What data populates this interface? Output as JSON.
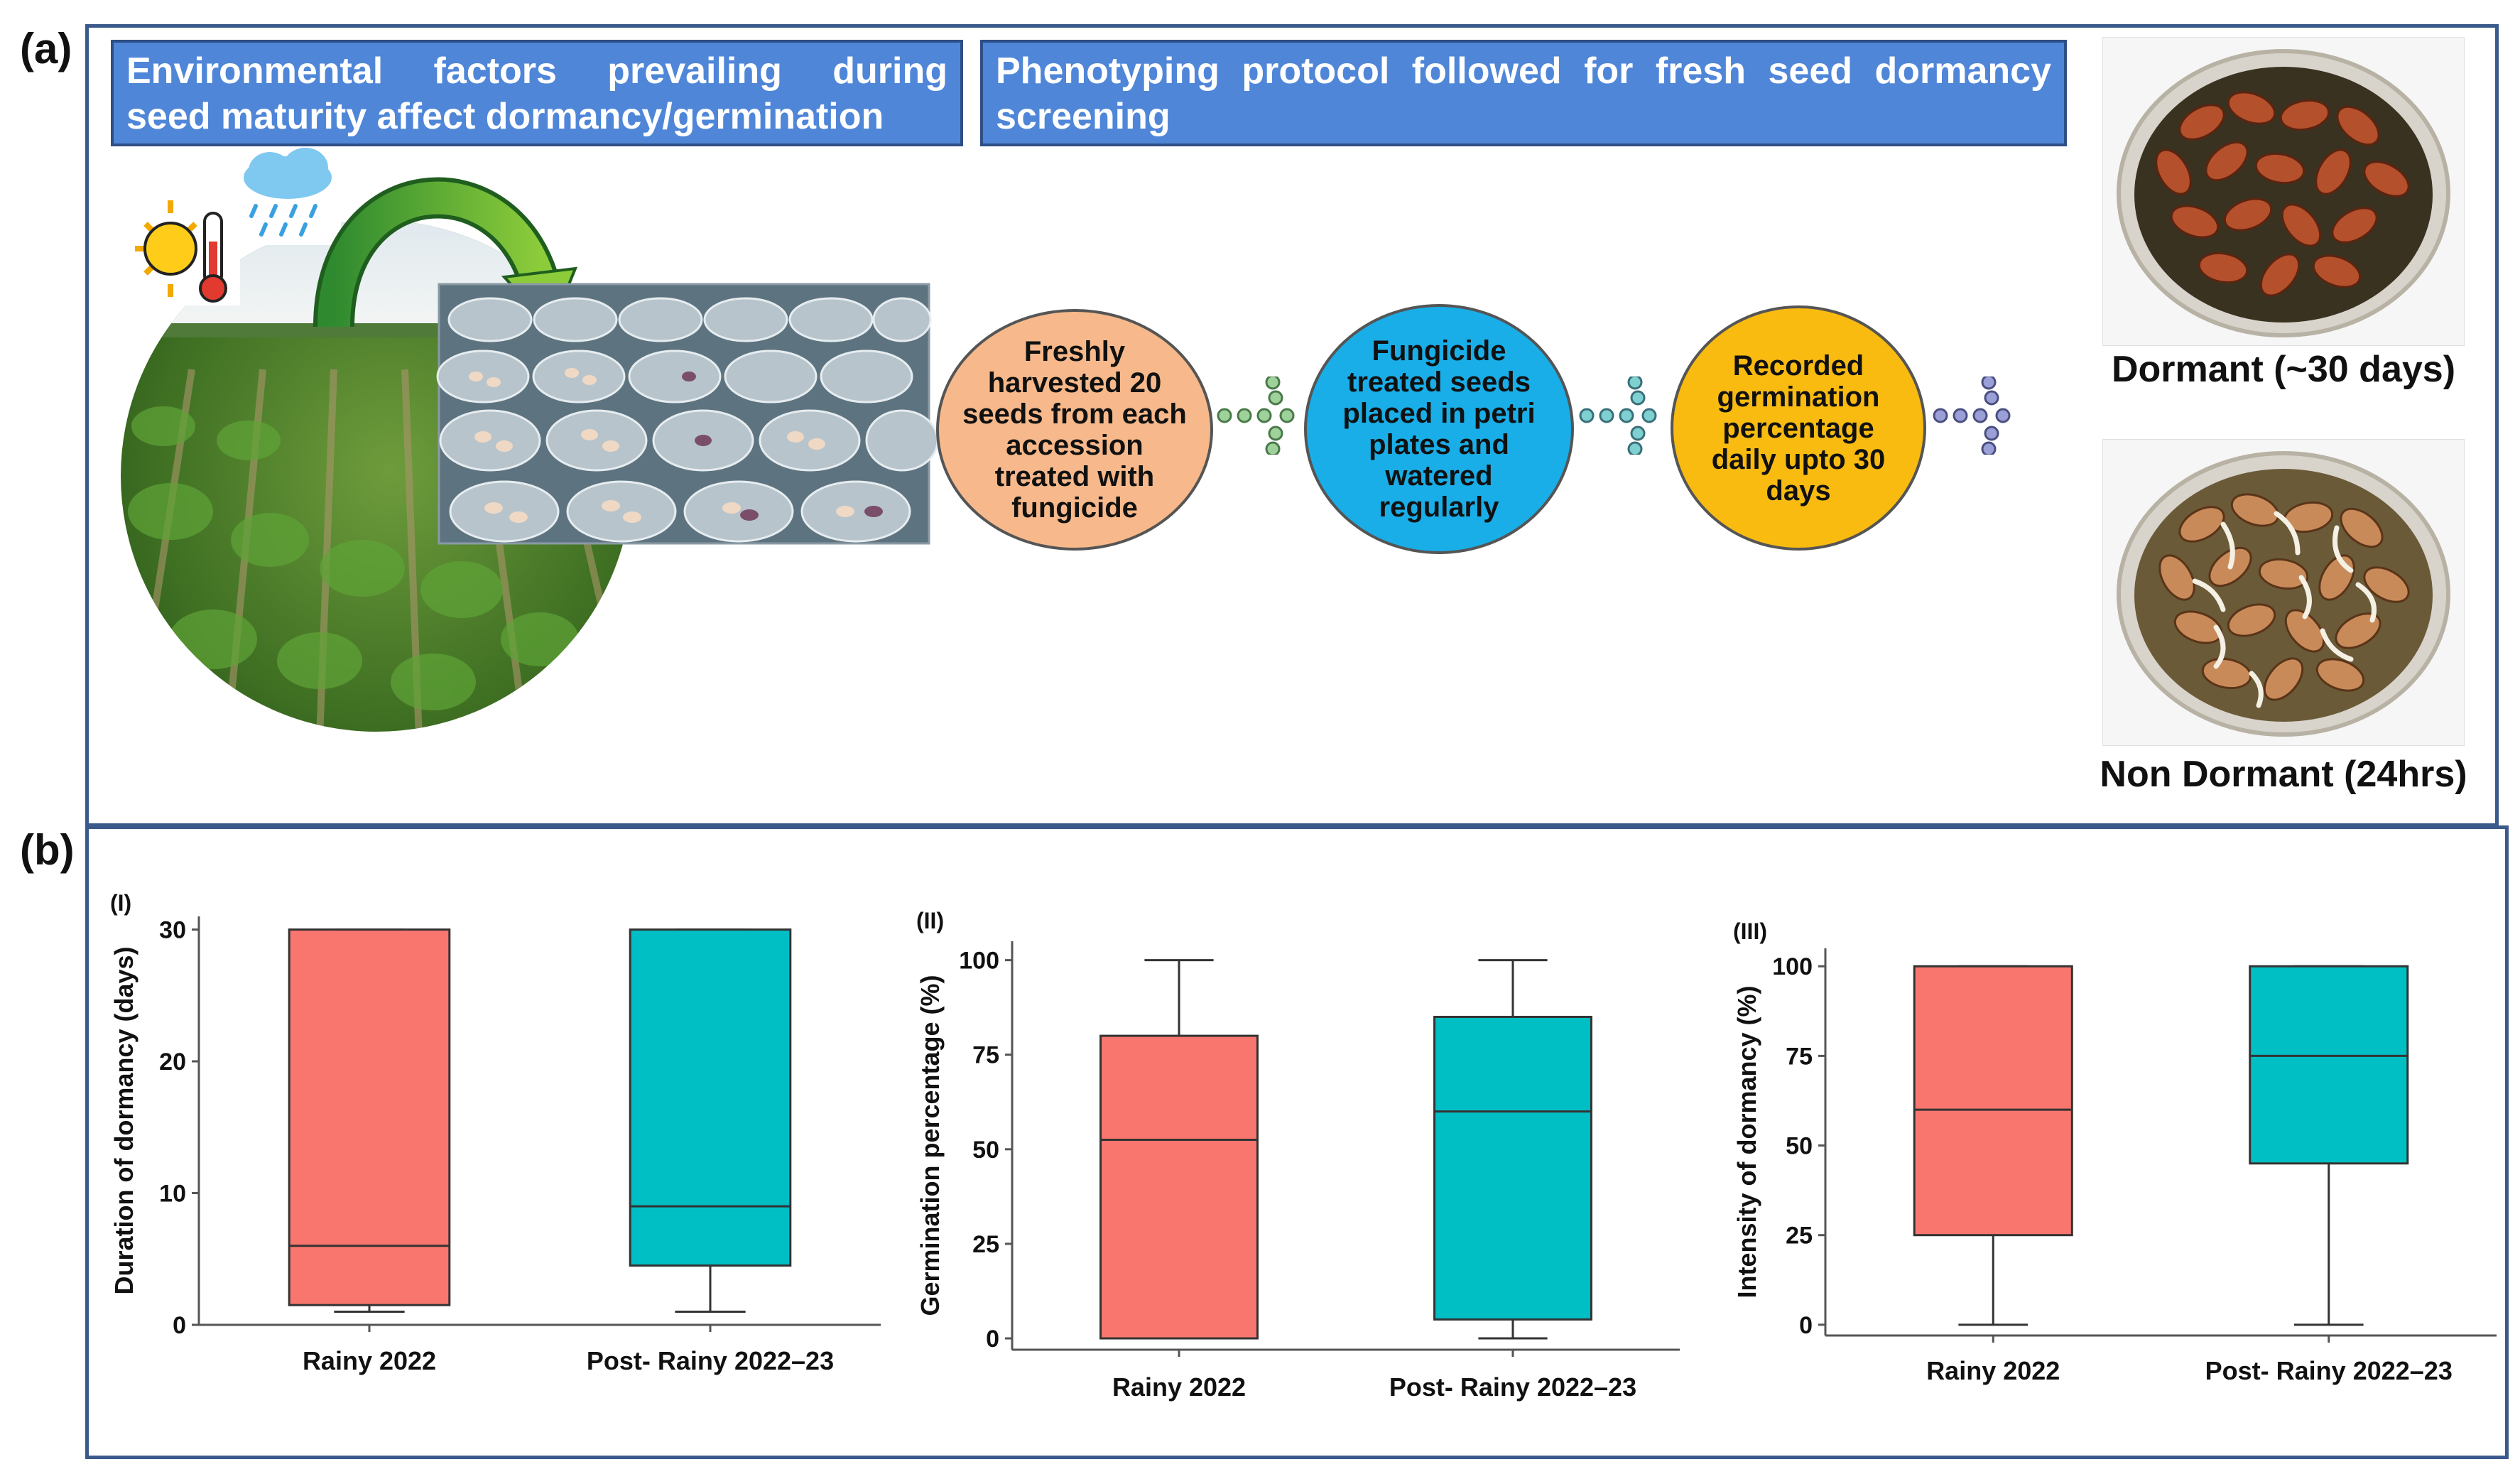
{
  "figure": {
    "panel_a_label": "(a)",
    "panel_b_label": "(b)"
  },
  "panel_a": {
    "banner_left": "Environmental factors prevailing during seed maturity affect dormancy/germination",
    "banner_left_line1": "Environmental factors prevailing during",
    "banner_left_line2": "seed maturity affect dormancy/germination",
    "banner_right_line1": "Phenotyping protocol followed for fresh seed dormancy",
    "banner_right_line2": "screening",
    "steps": [
      {
        "text": "Freshly harvested 20 seeds from each accession treated with fungicide",
        "color": "#f7b98b"
      },
      {
        "text": "Fungicide treated seeds placed in petri plates and watered regularly",
        "color": "#19aee8"
      },
      {
        "text": "Recorded germination percentage daily upto 30 days",
        "color": "#f9bb10"
      }
    ],
    "icons": {
      "weather": "sun-thermometer-icon",
      "rain": "rain-cloud-icon",
      "arrow": "curved-arrow-icon"
    },
    "dormant_caption": "Dormant (~30 days)",
    "non_dormant_caption": "Non Dormant (24hrs)"
  },
  "chart_data": [
    {
      "type": "box",
      "panel_label": "(I)",
      "title": "",
      "xlabel": "",
      "ylabel": "Duration of dormancy (days)",
      "categories": [
        "Rainy 2022",
        "Post- Rainy 2022–23"
      ],
      "colors": [
        "#f8766d",
        "#00bfc4"
      ],
      "ylim": [
        0,
        31
      ],
      "yticks": [
        0,
        10,
        20,
        30
      ],
      "boxes": [
        {
          "min": 1,
          "q1": 1.5,
          "median": 6,
          "q3": 30,
          "max": 30
        },
        {
          "min": 1,
          "q1": 4.5,
          "median": 9,
          "q3": 30,
          "max": 30
        }
      ]
    },
    {
      "type": "box",
      "panel_label": "(II)",
      "title": "",
      "xlabel": "",
      "ylabel": "Germination percentage (%)",
      "categories": [
        "Rainy 2022",
        "Post- Rainy 2022–23"
      ],
      "colors": [
        "#f8766d",
        "#00bfc4"
      ],
      "ylim": [
        -3,
        105
      ],
      "yticks": [
        0,
        25,
        50,
        75,
        100
      ],
      "boxes": [
        {
          "min": 0,
          "q1": 0,
          "median": 52.5,
          "q3": 80,
          "max": 100
        },
        {
          "min": 0,
          "q1": 5,
          "median": 60,
          "q3": 85,
          "max": 100
        }
      ]
    },
    {
      "type": "box",
      "panel_label": "(III)",
      "title": "",
      "xlabel": "",
      "ylabel": "Intensity of dormancy (%)",
      "categories": [
        "Rainy 2022",
        "Post- Rainy 2022–23"
      ],
      "colors": [
        "#f8766d",
        "#00bfc4"
      ],
      "ylim": [
        -3,
        105
      ],
      "yticks": [
        0,
        25,
        50,
        75,
        100
      ],
      "boxes": [
        {
          "min": 0,
          "q1": 25,
          "median": 60,
          "q3": 100,
          "max": 100
        },
        {
          "min": 0,
          "q1": 45,
          "median": 75,
          "q3": 100,
          "max": 100
        }
      ]
    }
  ]
}
